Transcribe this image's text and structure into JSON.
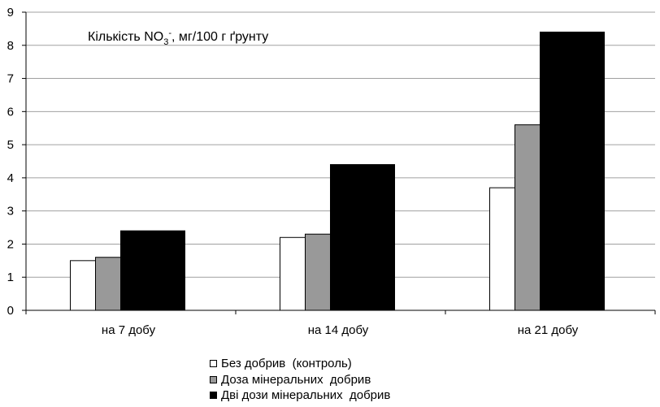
{
  "chart_data": {
    "type": "bar",
    "title": {
      "prefix": "Кількість NO",
      "sub": "3",
      "sup": "-",
      "suffix": ", мг/100 г ґрунту"
    },
    "categories": [
      "на 7 добу",
      "на 14 добу",
      "на 21 добу"
    ],
    "series": [
      {
        "name": "Без добрив  (контроль)",
        "values": [
          1.5,
          2.2,
          3.7
        ],
        "color": "#ffffff"
      },
      {
        "name": "Доза мінеральних  добрив",
        "values": [
          1.6,
          2.3,
          5.6
        ],
        "color": "#999999"
      },
      {
        "name": "Дві дози мінеральних  добрив",
        "values": [
          2.4,
          4.4,
          8.4
        ],
        "color": "#000000"
      }
    ],
    "y_ticks": [
      "0",
      "1",
      "2",
      "3",
      "4",
      "5",
      "6",
      "7",
      "8",
      "9"
    ],
    "ylim": [
      0,
      9
    ],
    "grid": true,
    "legend_position": "bottom"
  }
}
